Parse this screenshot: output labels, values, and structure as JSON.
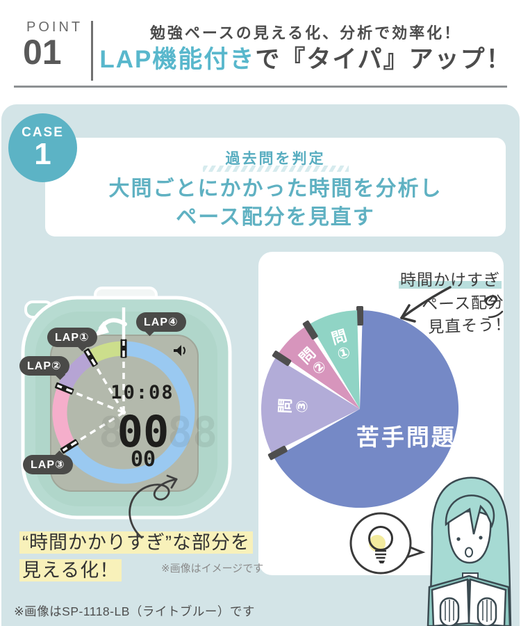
{
  "header": {
    "point_label": "POINT",
    "point_number": "01",
    "subtitle": "勉強ペースの見える化、分析で効率化！",
    "title_accent": "LAP機能付き",
    "title_rest": "で『タイパ』アップ！"
  },
  "case": {
    "badge_label": "CASE",
    "badge_number": "1",
    "tagline": "過去問を判定",
    "headline_line1": "大問ごとにかかった時間を分析し",
    "headline_line2": "ペース配分を見直す"
  },
  "timer": {
    "clock": "10:08",
    "minutes": "00",
    "seconds": "00",
    "ghost_left": "8",
    "ghost_right": "88",
    "lap_labels": [
      "LAP①",
      "LAP②",
      "LAP③",
      "LAP④"
    ],
    "ring": [
      {
        "name": "segment-blue",
        "color": "#9ac9f1",
        "start": 2,
        "end": 237
      },
      {
        "name": "segment-pink",
        "color": "#f5aecb",
        "start": 239,
        "end": 291
      },
      {
        "name": "segment-purple",
        "color": "#b6a4d4",
        "start": 293,
        "end": 328
      },
      {
        "name": "segment-green",
        "color": "#ccde8c",
        "start": 330,
        "end": 358
      }
    ],
    "marker_angles": [
      0,
      238,
      292,
      329
    ],
    "dash_angles": [
      0,
      238,
      292,
      329
    ],
    "marker_color": "#1d1d1b"
  },
  "chart_data": {
    "type": "pie",
    "title": "",
    "order": "clockwise-from-top",
    "unit": "estimated % of exam time",
    "slices": [
      {
        "label": "苦手問題",
        "value": 66,
        "color": "#7589c6",
        "major": true
      },
      {
        "label": "問③",
        "value": 16,
        "color": "#b2acd8"
      },
      {
        "label": "問②",
        "value": 6,
        "color": "#d795bc"
      },
      {
        "label": "問①",
        "value": 8,
        "color": "#90d4c5"
      }
    ],
    "marker_color": "#4e4e4e",
    "annotations": [
      "時間かけすぎ",
      "ペース配分",
      "見直そう！"
    ]
  },
  "notes": {
    "visible_line1": "“時間かかりすぎ”な部分を",
    "visible_line2": "見える化！",
    "image_disclaimer": "※画像はイメージです",
    "footer": "※画像はSP-1118-LB（ライトブルー）です"
  },
  "colors": {
    "accent_teal": "#58b7cc",
    "headline_teal": "#5fb1c2",
    "container_bg": "#d3e4e7",
    "badge_teal": "#5cb3c5",
    "pill_dark": "#4a4a48",
    "highlight_yellow": "#f8f1ba",
    "highlight_teal": "#b9dedd"
  }
}
